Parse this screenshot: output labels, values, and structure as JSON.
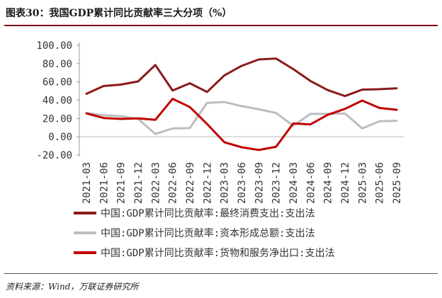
{
  "header": {
    "title": "图表30：我国GDP累计同比贡献率三大分项（%）"
  },
  "footer": {
    "source": "资料来源：Wind，万联证券研究所"
  },
  "chart_data": {
    "type": "line",
    "title": "图表30：我国GDP累计同比贡献率三大分项（%）",
    "xlabel": "",
    "ylabel": "",
    "ylim": [
      -20,
      100
    ],
    "yticks": [
      "100.00",
      "80.00",
      "60.00",
      "40.00",
      "20.00",
      "0.00",
      "-20.00"
    ],
    "grid": false,
    "legend_position": "bottom",
    "x": [
      "2021-03",
      "2021-06",
      "2021-09",
      "2021-12",
      "2022-03",
      "2022-06",
      "2022-09",
      "2022-12",
      "2023-03",
      "2023-06",
      "2023-09",
      "2023-12",
      "2024-03",
      "2024-06",
      "2024-09",
      "2024-12",
      "2025-03",
      "2025-06",
      "2025-09"
    ],
    "series": [
      {
        "name": "中国:GDP累计同比贡献率:最终消费支出:支出法",
        "color": "#8b1a1a",
        "values": [
          47,
          55.5,
          57,
          60.5,
          78.5,
          50.5,
          58.5,
          49,
          67,
          77.5,
          84.5,
          85.5,
          74,
          61,
          51,
          44.5,
          51.5,
          52,
          53
        ]
      },
      {
        "name": "中国:GDP累计同比贡献率:资本形成总额:支出法",
        "color": "#bdbdbd",
        "values": [
          26,
          23.5,
          22.5,
          19.5,
          3,
          9,
          9.5,
          37,
          38,
          33.5,
          30,
          26,
          12,
          25,
          25,
          25.5,
          9,
          17,
          17.5
        ]
      },
      {
        "name": "中国:GDP累计同比贡献率:货物和服务净出口:支出法",
        "color": "#c00000",
        "values": [
          25.5,
          20.5,
          19.5,
          20,
          18.5,
          41.5,
          32.5,
          14,
          -6,
          -11.5,
          -14.5,
          -11,
          14.5,
          13.5,
          24,
          30.5,
          39.5,
          31.5,
          29.5
        ]
      }
    ]
  }
}
